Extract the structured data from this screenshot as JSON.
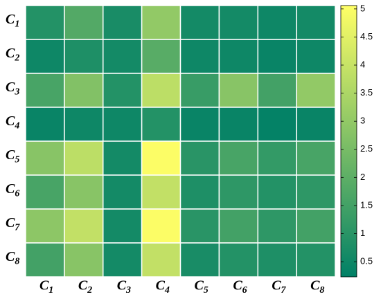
{
  "chart_data": {
    "type": "heatmap",
    "x_categories": [
      "C1",
      "C2",
      "C3",
      "C4",
      "C5",
      "C6",
      "C7",
      "C8"
    ],
    "y_categories": [
      "C1",
      "C2",
      "C3",
      "C4",
      "C5",
      "C6",
      "C7",
      "C8"
    ],
    "values": [
      [
        0.9,
        1.8,
        0.7,
        3.0,
        0.6,
        0.6,
        0.5,
        0.6
      ],
      [
        0.5,
        0.8,
        0.6,
        1.9,
        0.5,
        0.5,
        0.4,
        0.5
      ],
      [
        1.6,
        2.7,
        0.9,
        3.8,
        1.3,
        2.8,
        1.5,
        3.0
      ],
      [
        0.4,
        0.5,
        0.5,
        0.9,
        0.4,
        0.4,
        0.3,
        0.4
      ],
      [
        2.8,
        3.8,
        0.6,
        5.0,
        1.0,
        1.6,
        1.2,
        1.6
      ],
      [
        1.6,
        2.8,
        0.6,
        3.9,
        0.8,
        1.1,
        0.9,
        1.1
      ],
      [
        2.9,
        3.9,
        0.6,
        5.0,
        1.0,
        1.5,
        1.1,
        1.5
      ],
      [
        1.5,
        2.8,
        0.6,
        3.9,
        0.7,
        0.9,
        0.8,
        0.9
      ]
    ],
    "colormap": [
      "#008066",
      "#ffff66"
    ],
    "clim": [
      0.23,
      5.06
    ],
    "cticks": [
      0.5,
      1,
      1.5,
      2,
      2.5,
      3,
      3.5,
      4,
      4.5,
      5
    ]
  }
}
